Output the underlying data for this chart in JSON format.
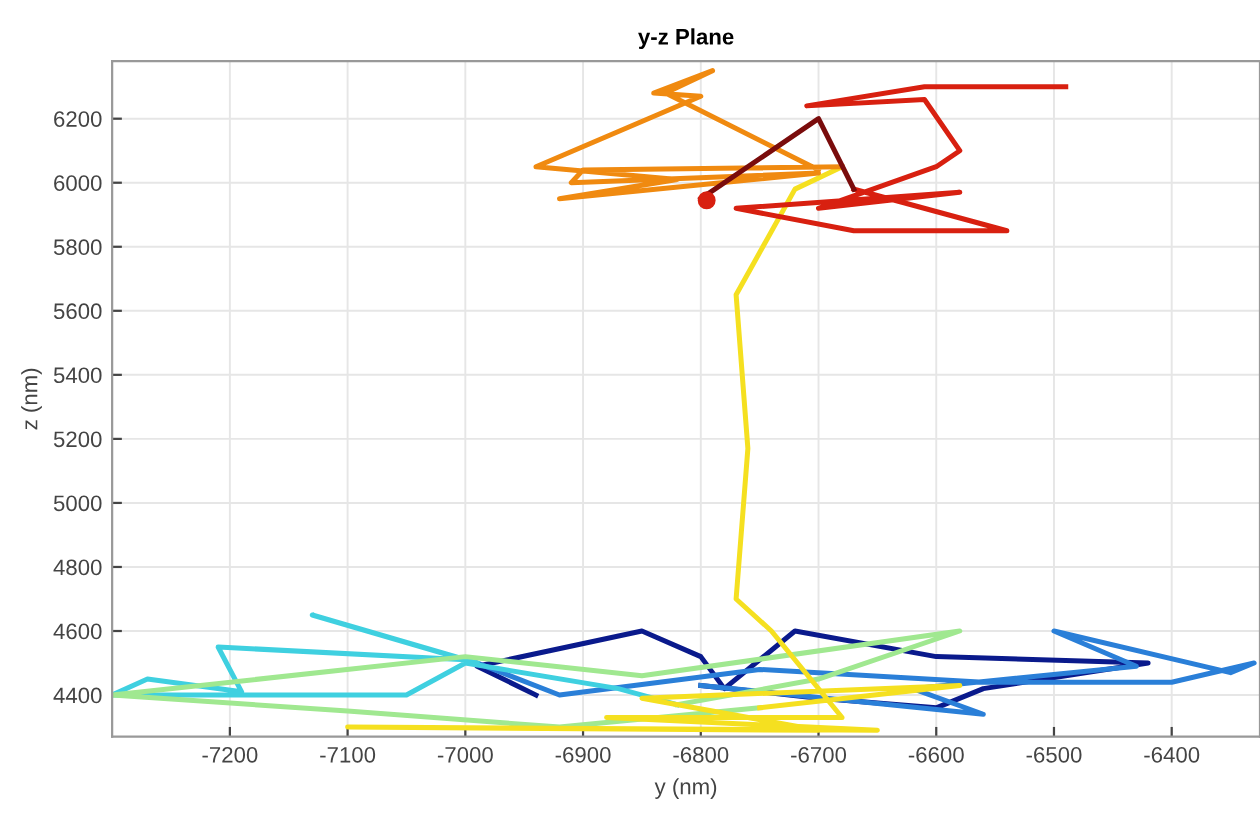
{
  "chart_data": {
    "type": "line",
    "title": "y-z Plane",
    "xlabel": "y (nm)",
    "ylabel": "z (nm)",
    "xlim": [
      -7300,
      -6325
    ],
    "ylim": [
      4270,
      6380
    ],
    "xticks": [
      -7200,
      -7100,
      -7000,
      -6900,
      -6800,
      -6700,
      -6600,
      -6500,
      -6400
    ],
    "yticks": [
      4400,
      4600,
      4800,
      5000,
      5200,
      5400,
      5600,
      5800,
      6000,
      6200
    ],
    "grid": true,
    "legend": false,
    "marker": "none",
    "line_style": "solid",
    "series": [
      {
        "color": "#0a1a8c",
        "x": [
          -6940,
          -6990,
          -6850,
          -6800,
          -6780,
          -6720,
          -6600,
          -6420,
          -6560,
          -6600,
          -6700,
          -6800
        ],
        "values": [
          4400,
          4490,
          4600,
          4520,
          4420,
          4600,
          4520,
          4500,
          4420,
          4360,
          4390,
          4430
        ]
      },
      {
        "color": "#2a7fd8",
        "x": [
          -6800,
          -6560,
          -6620,
          -6430,
          -6500,
          -6350,
          -6330,
          -6400,
          -6560,
          -6750,
          -6920,
          -6990
        ],
        "values": [
          4430,
          4340,
          4420,
          4490,
          4600,
          4470,
          4500,
          4440,
          4440,
          4480,
          4400,
          4500
        ]
      },
      {
        "color": "#3fd0e0",
        "x": [
          -6990,
          -7130,
          -7000,
          -7210,
          -7190,
          -7270,
          -7300,
          -7050,
          -7000,
          -6870,
          -6820
        ],
        "values": [
          4500,
          4650,
          4510,
          4550,
          4410,
          4450,
          4400,
          4400,
          4500,
          4420,
          4370
        ]
      },
      {
        "color": "#a0e890",
        "x": [
          -6820,
          -6700,
          -6580,
          -6850,
          -7000,
          -7300,
          -7100,
          -6920,
          -6750
        ],
        "values": [
          4370,
          4450,
          4600,
          4460,
          4520,
          4400,
          4350,
          4300,
          4360
        ]
      },
      {
        "color": "#f5e020",
        "x": [
          -6750,
          -6580,
          -6850,
          -6700,
          -7100,
          -6650,
          -6880,
          -6680,
          -6740,
          -6770,
          -6760,
          -6770,
          -6720,
          -6680
        ],
        "values": [
          4360,
          4430,
          4390,
          4290,
          4300,
          4290,
          4330,
          4330,
          4600,
          4700,
          5170,
          5650,
          5980,
          6050
        ]
      },
      {
        "color": "#f08a10",
        "x": [
          -6680,
          -6900,
          -6910,
          -6700,
          -6920,
          -6820,
          -6940,
          -6800,
          -6840,
          -6790,
          -6830,
          -6700
        ],
        "values": [
          6050,
          6040,
          6000,
          6030,
          5950,
          6010,
          6050,
          6270,
          6280,
          6350,
          6280,
          6040
        ]
      },
      {
        "color": "#d82010",
        "x": [
          -6490,
          -6610,
          -6710,
          -6610,
          -6580,
          -6600,
          -6700,
          -6580,
          -6770,
          -6670,
          -6540,
          -6670
        ],
        "values": [
          6300,
          6300,
          6240,
          6260,
          6100,
          6050,
          5920,
          5970,
          5920,
          5850,
          5850,
          5980
        ]
      },
      {
        "color": "#7a0c0c",
        "x": [
          -6670,
          -6700,
          -6800
        ],
        "values": [
          5980,
          6200,
          5950
        ]
      },
      {
        "type": "scatter",
        "marker": "circle",
        "color": "#d82010",
        "x": [
          -6795
        ],
        "values": [
          5945
        ]
      }
    ]
  }
}
